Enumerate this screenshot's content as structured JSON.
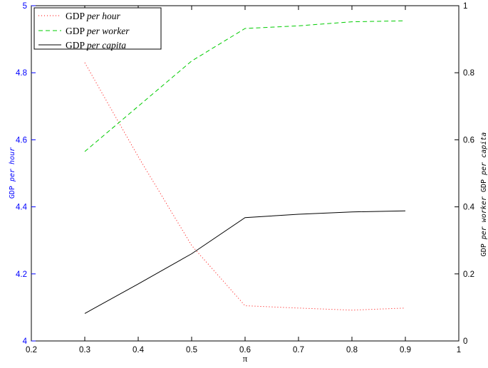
{
  "chart_data": {
    "type": "line",
    "xlabel": "π",
    "xlim": [
      0.2,
      1
    ],
    "x_ticks": [
      "0.2",
      "0.3",
      "0.4",
      "0.5",
      "0.6",
      "0.7",
      "0.8",
      "0.9",
      "1"
    ],
    "left_axis": {
      "label_prefix": "GDP",
      "label_italic": "per hour",
      "ylim": [
        4,
        5
      ],
      "ticks": [
        "4",
        "4.2",
        "4.4",
        "4.6",
        "4.8",
        "5"
      ],
      "color": "#0000ff"
    },
    "right_axis": {
      "label_prefix_1": "GDP",
      "label_italic_1": "per worker",
      "label_prefix_2": "GDP",
      "label_italic_2": "per capita",
      "ylim": [
        0,
        1
      ],
      "ticks": [
        "0",
        "0.2",
        "0.4",
        "0.6",
        "0.8",
        "1"
      ],
      "color": "#000000"
    },
    "legend_position": "top-left",
    "series": [
      {
        "name_prefix": "GDP",
        "name_italic": "per hour",
        "axis": "left",
        "color": "#ff0000",
        "style": "dotted",
        "x": [
          0.3,
          0.4,
          0.5,
          0.6,
          0.7,
          0.8,
          0.9
        ],
        "y": [
          4.83,
          4.55,
          4.285,
          4.105,
          4.098,
          4.092,
          4.098
        ]
      },
      {
        "name_prefix": "GDP",
        "name_italic": "per worker",
        "axis": "right",
        "color": "#00cc00",
        "style": "dashed",
        "x": [
          0.3,
          0.4,
          0.5,
          0.6,
          0.7,
          0.8,
          0.9
        ],
        "y": [
          0.565,
          0.7,
          0.835,
          0.932,
          0.94,
          0.952,
          0.955
        ]
      },
      {
        "name_prefix": "GDP",
        "name_italic": "per capita",
        "axis": "right",
        "color": "#000000",
        "style": "solid",
        "x": [
          0.3,
          0.4,
          0.5,
          0.6,
          0.7,
          0.8,
          0.9
        ],
        "y": [
          0.082,
          0.17,
          0.26,
          0.368,
          0.378,
          0.385,
          0.388
        ]
      }
    ]
  }
}
